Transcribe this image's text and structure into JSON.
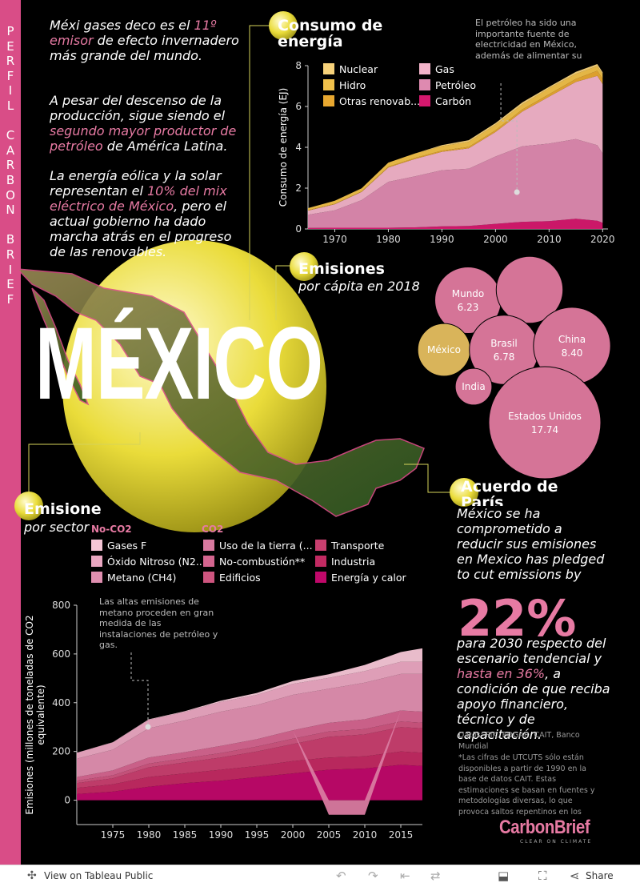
{
  "sidebar_title": "PERFIL CARBON BRIEF",
  "intro": {
    "p1_a": "Méxi gases deco es el ",
    "p1_hl": "11º emisor",
    "p1_b": " de efecto invernadero más grande del mundo.",
    "p2_a": "A pesar del descenso de la producción, sigue siendo el ",
    "p2_hl": "segundo mayor productor de petróleo",
    "p2_b": " de América Latina.",
    "p3_a": "La energía eólica y la solar representan el ",
    "p3_hl": "10% del mix eléctrico de México",
    "p3_b": ", pero el actual gobierno ha dado marcha atrás en el progreso de las renovables."
  },
  "hero_title": "MÉXICO",
  "energy": {
    "title": "Consumo de energía",
    "annotation": "El petróleo ha sido una importante fuente de electricidad en México, además de alimentar su",
    "legend": [
      {
        "label": "Nuclear",
        "color": "#f7d27a"
      },
      {
        "label": "Hidro",
        "color": "#f0c04a"
      },
      {
        "label": "Otras renovab...",
        "color": "#e8a830"
      },
      {
        "label": "Gas",
        "color": "#f2b3c9"
      },
      {
        "label": "Petróleo",
        "color": "#de8ab0"
      },
      {
        "label": "Carbón",
        "color": "#d6186e"
      }
    ]
  },
  "percap": {
    "title": "Emisiones",
    "subtitle": "por cápita en 2018"
  },
  "sector": {
    "title": "Emisione",
    "subtitle": "por sector",
    "group_noco2": "No-CO2",
    "group_co2": "CO2",
    "legend": [
      {
        "label": "Gases F",
        "color": "#f5c6d6"
      },
      {
        "label": "Óxido Nitroso (N2...",
        "color": "#eaa7c1"
      },
      {
        "label": "Metano (CH4)",
        "color": "#e08fb0"
      },
      {
        "label": "Uso de la tierra (...",
        "color": "#d97aa0"
      },
      {
        "label": "No-combustión**",
        "color": "#d4658f"
      },
      {
        "label": "Edificios",
        "color": "#ce557f"
      },
      {
        "label": "Transporte",
        "color": "#c83f6f"
      },
      {
        "label": "Industria",
        "color": "#c22a62"
      },
      {
        "label": "Energía y calor",
        "color": "#c0086a"
      }
    ],
    "annotation": "Las altas emisiones de metano proceden en gran medida de las instalaciones de petróleo y gas."
  },
  "paris": {
    "title": "Acuerdo de París",
    "text_a": "México se ha comprometido a reducir sus emisiones en Mexico has pledged to cut emissions by",
    "big": "22%",
    "text_b": "para 2030 respecto del escenario tendencial y ",
    "text_hl": "hasta en 36%",
    "text_c": ", a condición de que reciba apoyo financiero, técnico y de capacitación.",
    "sources": "Datos: PIK, EDGAR, CAIT, Banco Mundial",
    "footnote": "*Las cifras de UTCUTS sólo están disponibles a partir de 1990 en la base de datos CAIT. Estas estimaciones se basan en fuentes y metodologías diversas, lo que provoca saltos repentinos en los"
  },
  "logo": {
    "name": "CarbonBrief",
    "tagline": "CLEAR ON CLIMATE"
  },
  "footer": {
    "view_label": "View on Tableau Public",
    "share_label": "Share"
  },
  "chart_data": [
    {
      "type": "area",
      "title": "Consumo de energía",
      "ylabel": "Consumo de energía (EJ)",
      "xlabel": "",
      "xlim": [
        1965,
        2021
      ],
      "ylim": [
        0,
        8
      ],
      "x_ticks": [
        1970,
        1980,
        1990,
        2000,
        2010,
        2020
      ],
      "y_ticks": [
        0,
        2,
        4,
        6,
        8
      ],
      "x": [
        1965,
        1970,
        1975,
        1980,
        1985,
        1990,
        1995,
        2000,
        2005,
        2010,
        2015,
        2019,
        2020
      ],
      "series": [
        {
          "name": "Carbón",
          "values": [
            0.05,
            0.06,
            0.06,
            0.06,
            0.08,
            0.13,
            0.15,
            0.25,
            0.35,
            0.38,
            0.5,
            0.4,
            0.3
          ]
        },
        {
          "name": "Petróleo",
          "values": [
            0.65,
            0.85,
            1.35,
            2.25,
            2.5,
            2.75,
            2.8,
            3.3,
            3.7,
            3.8,
            3.9,
            3.7,
            3.4
          ]
        },
        {
          "name": "Gas",
          "values": [
            0.2,
            0.3,
            0.4,
            0.7,
            0.85,
            0.9,
            1.0,
            1.2,
            1.7,
            2.3,
            2.8,
            3.4,
            3.4
          ]
        },
        {
          "name": "Otras renovab...",
          "values": [
            0.02,
            0.02,
            0.03,
            0.04,
            0.05,
            0.06,
            0.07,
            0.08,
            0.1,
            0.12,
            0.15,
            0.25,
            0.25
          ]
        },
        {
          "name": "Hidro",
          "values": [
            0.1,
            0.15,
            0.15,
            0.2,
            0.22,
            0.22,
            0.25,
            0.28,
            0.25,
            0.3,
            0.25,
            0.23,
            0.23
          ]
        },
        {
          "name": "Nuclear",
          "values": [
            0,
            0,
            0,
            0,
            0,
            0.05,
            0.08,
            0.08,
            0.1,
            0.06,
            0.1,
            0.1,
            0.1
          ]
        }
      ]
    },
    {
      "type": "bubble",
      "title": "Emisiones por cápita en 2018",
      "items": [
        {
          "name": "Mundo",
          "value": 6.23,
          "label": "6.23"
        },
        {
          "name": "",
          "value": 6.3,
          "label": ""
        },
        {
          "name": "México",
          "value": 3.9,
          "label": ""
        },
        {
          "name": "Brasil",
          "value": 6.78,
          "label": "6.78"
        },
        {
          "name": "China",
          "value": 8.4,
          "label": "8.40"
        },
        {
          "name": "India",
          "value": 1.9,
          "label": ""
        },
        {
          "name": "Estados Unidos",
          "value": 17.74,
          "label": "17.74"
        }
      ]
    },
    {
      "type": "area",
      "title": "Emisiones por sector",
      "ylabel": "Emisiones (millones de toneladas de CO2 equivalente)",
      "xlabel": "",
      "xlim": [
        1970,
        2018
      ],
      "ylim": [
        -100,
        800
      ],
      "x_ticks": [
        1975,
        1980,
        1985,
        1990,
        1995,
        2000,
        2005,
        2010,
        2015
      ],
      "y_ticks": [
        0,
        200,
        400,
        600,
        800
      ],
      "x": [
        1970,
        1975,
        1980,
        1985,
        1990,
        1995,
        2000,
        2005,
        2010,
        2015,
        2018
      ],
      "series": [
        {
          "name": "Energía y calor",
          "values": [
            25,
            35,
            55,
            70,
            80,
            95,
            110,
            125,
            130,
            145,
            140
          ]
        },
        {
          "name": "Industria",
          "values": [
            25,
            30,
            40,
            40,
            45,
            45,
            50,
            50,
            50,
            55,
            55
          ]
        },
        {
          "name": "Transporte",
          "values": [
            20,
            25,
            40,
            45,
            50,
            60,
            70,
            85,
            90,
            100,
            100
          ]
        },
        {
          "name": "Edificios",
          "values": [
            10,
            12,
            15,
            17,
            18,
            20,
            22,
            22,
            22,
            23,
            23
          ]
        },
        {
          "name": "No-combustión**",
          "values": [
            15,
            20,
            25,
            25,
            30,
            30,
            35,
            35,
            40,
            45,
            45
          ]
        },
        {
          "name": "Uso de la tierra (...",
          "values": [
            0,
            0,
            0,
            0,
            0,
            0,
            0,
            -60,
            -60,
            0,
            0
          ]
        },
        {
          "name": "Metano (CH4)",
          "values": [
            75,
            85,
            120,
            130,
            140,
            140,
            145,
            140,
            150,
            150,
            155
          ]
        },
        {
          "name": "Óxido Nitroso (N2...",
          "values": [
            25,
            30,
            35,
            35,
            40,
            42,
            45,
            45,
            48,
            50,
            50
          ]
        },
        {
          "name": "Gases F",
          "values": [
            0,
            1,
            2,
            3,
            5,
            8,
            12,
            15,
            25,
            40,
            55
          ]
        }
      ]
    }
  ]
}
